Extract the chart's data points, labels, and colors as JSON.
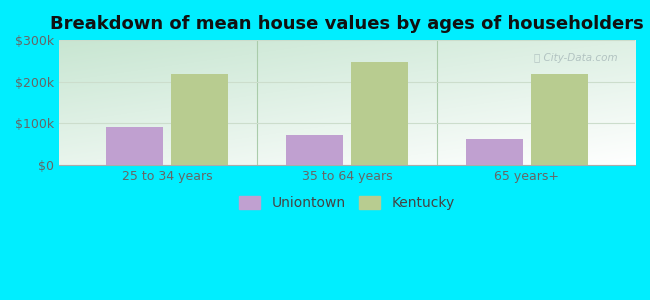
{
  "title": "Breakdown of mean house values by ages of householders",
  "categories": [
    "25 to 34 years",
    "35 to 64 years",
    "65 years+"
  ],
  "uniontown_values": [
    90000,
    72000,
    62000
  ],
  "kentucky_values": [
    218000,
    248000,
    218000
  ],
  "bar_color_uniontown": "#c0a0d0",
  "bar_color_kentucky": "#b8cc90",
  "background_color": "#00eeff",
  "ylim": [
    0,
    300000
  ],
  "yticks": [
    0,
    100000,
    200000,
    300000
  ],
  "ytick_labels": [
    "$0",
    "$100k",
    "$200k",
    "$300k"
  ],
  "legend_labels": [
    "Uniontown",
    "Kentucky"
  ],
  "bar_width": 0.32,
  "title_fontsize": 13,
  "tick_fontsize": 9,
  "legend_fontsize": 10
}
